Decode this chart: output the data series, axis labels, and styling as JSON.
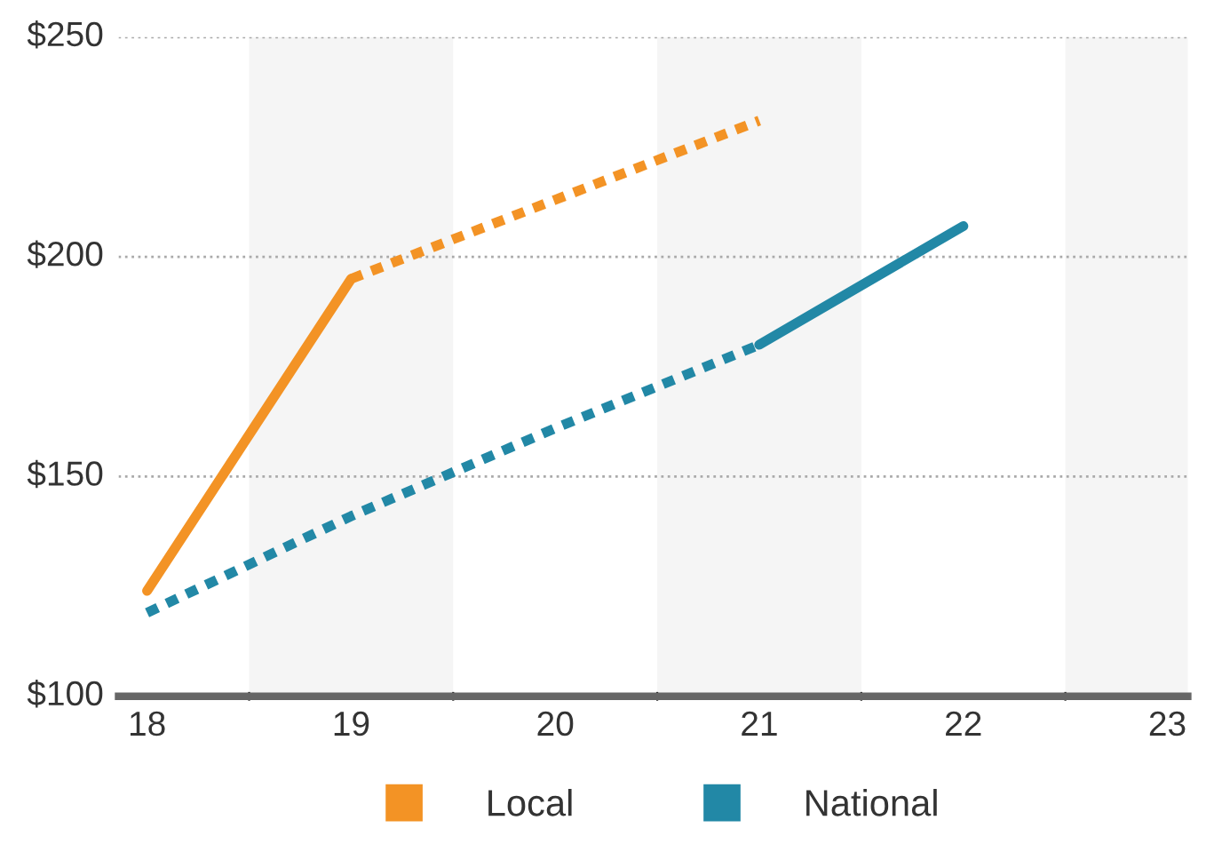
{
  "chart_data": {
    "type": "line",
    "series": [
      {
        "name": "Local",
        "color": "#f39325",
        "x": [
          18,
          19
        ],
        "values": [
          124,
          195
        ],
        "line_style": "solid"
      },
      {
        "color": "#f39325",
        "x": [
          19,
          20,
          21
        ],
        "values": [
          195,
          213,
          231
        ],
        "line_style": "dotted"
      },
      {
        "name": "National",
        "color": "#2288a6",
        "x": [
          18,
          19,
          20,
          21
        ],
        "values": [
          119,
          141,
          161,
          180
        ],
        "line_style": "dotted"
      },
      {
        "color": "#2288a6",
        "x": [
          21,
          22
        ],
        "values": [
          180,
          207
        ],
        "line_style": "solid"
      }
    ],
    "xlim": [
      17.86,
      23.1
    ],
    "xticks": [
      18,
      19,
      20,
      21,
      22,
      23,
      {
        "value": 18.5,
        "label": null
      },
      {
        "value": 19.5,
        "label": null
      },
      {
        "value": 20.5,
        "label": null
      },
      {
        "value": 21.5,
        "label": null
      },
      {
        "value": 22.5,
        "label": null
      }
    ],
    "ylim": [
      100,
      250
    ],
    "yticks": [
      {
        "value": 100,
        "label": "$100"
      },
      {
        "value": 150,
        "label": "$150"
      },
      {
        "value": 200,
        "label": "$200"
      },
      {
        "value": 250,
        "label": "$250"
      }
    ],
    "bands": [
      {
        "axis": "x",
        "from": 18.5,
        "to": 19.5,
        "color": "#f5f5f5"
      },
      {
        "axis": "x",
        "from": 20.5,
        "to": 21.5,
        "color": "#f5f5f5"
      },
      {
        "axis": "x",
        "from": 22.5,
        "to": 23.5,
        "color": "#f5f5f5"
      }
    ],
    "grid": "y",
    "legend": "bottom",
    "marker": "none"
  }
}
